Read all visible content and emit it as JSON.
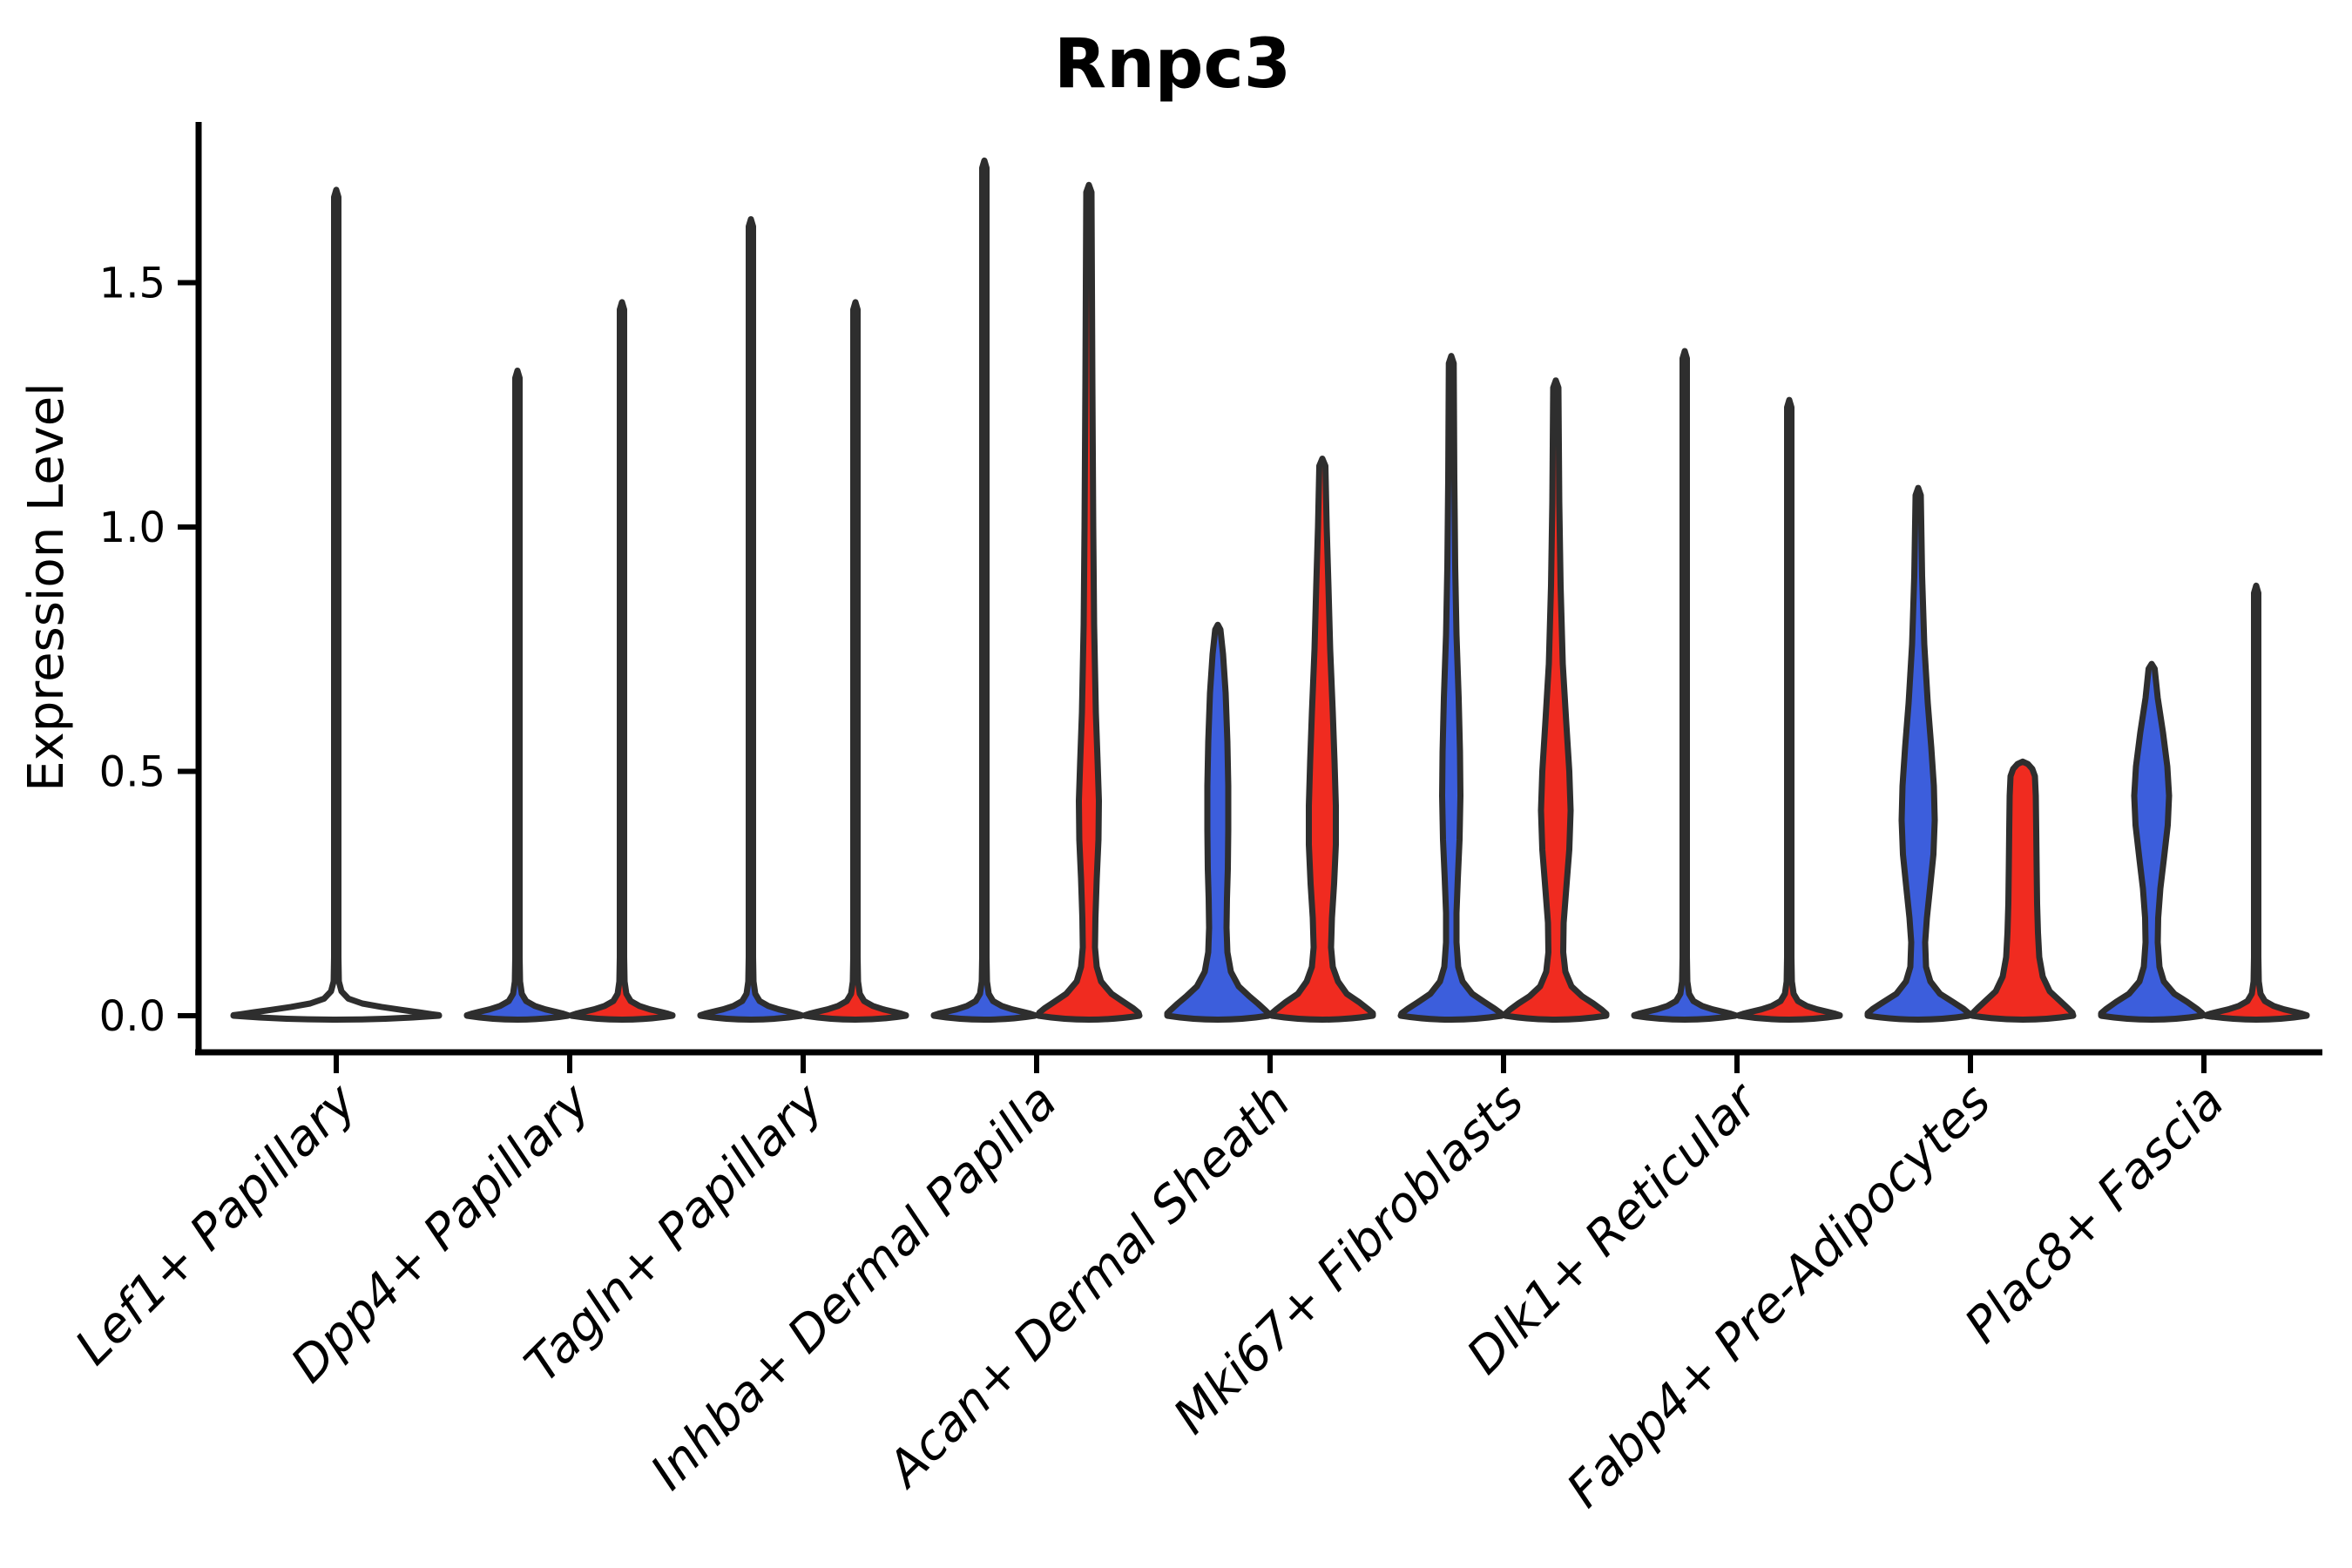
{
  "title": "Rnpc3",
  "ylabel": "Expression Level",
  "colors": {
    "blue": "#3C5EDC",
    "red": "#F02B20",
    "white": "#FFFFFF",
    "outline": "#2E2E2E",
    "axis": "#000000"
  },
  "chart_data": {
    "type": "violin",
    "title": "Rnpc3",
    "xlabel": "",
    "ylabel": "Expression Level",
    "grid": false,
    "legend": "none",
    "yticks": [
      {
        "value": 0.0,
        "label": "0.0"
      },
      {
        "value": 0.5,
        "label": "0.5"
      },
      {
        "value": 1.0,
        "label": "1.0"
      },
      {
        "value": 1.5,
        "label": "1.5"
      }
    ],
    "ylim": [
      -0.07,
      1.83
    ],
    "categories": [
      "Lef1+ Papillary",
      "Dpp4+ Papillary",
      "Tagln+ Papillary",
      "Inhba+ Dermal Papilla",
      "Acan+ Dermal Sheath",
      "Mki67+ Fibroblasts",
      "Dlk1+ Reticular",
      "Fabp4+ Pre-Adipocytes",
      "Plac8+ Fascia"
    ],
    "violins": [
      {
        "name": "lef1-papillary-single",
        "cat": 0,
        "side": "single",
        "fill": "white",
        "max": 1.69,
        "profile": [
          [
            1.69,
            0
          ],
          [
            1.675,
            2.5
          ],
          [
            0.12,
            2.5
          ],
          [
            0.07,
            3
          ],
          [
            0.05,
            6
          ],
          [
            0.035,
            14
          ],
          [
            0.025,
            30
          ],
          [
            0.018,
            52
          ],
          [
            0.012,
            75
          ],
          [
            0.007,
            95
          ],
          [
            0.003,
            110
          ],
          [
            0.001,
            118
          ],
          [
            0,
            118
          ]
        ]
      },
      {
        "name": "dpp4-papillary-left",
        "cat": 1,
        "side": "left",
        "fill": "blue",
        "max": 1.32,
        "profile": [
          [
            1.32,
            0
          ],
          [
            1.305,
            2.5
          ],
          [
            0.12,
            2.5
          ],
          [
            0.07,
            3
          ],
          [
            0.045,
            5
          ],
          [
            0.03,
            10
          ],
          [
            0.02,
            20
          ],
          [
            0.013,
            32
          ],
          [
            0.008,
            44
          ],
          [
            0.004,
            53
          ],
          [
            0.001,
            58
          ],
          [
            0,
            58
          ]
        ]
      },
      {
        "name": "dpp4-papillary-right",
        "cat": 1,
        "side": "right",
        "fill": "red",
        "max": 1.46,
        "profile": [
          [
            1.46,
            0
          ],
          [
            1.445,
            2.5
          ],
          [
            0.12,
            2.5
          ],
          [
            0.07,
            3
          ],
          [
            0.045,
            5
          ],
          [
            0.03,
            10
          ],
          [
            0.02,
            20
          ],
          [
            0.013,
            32
          ],
          [
            0.008,
            44
          ],
          [
            0.004,
            53
          ],
          [
            0.001,
            58
          ],
          [
            0,
            58
          ]
        ]
      },
      {
        "name": "tagln-papillary-left",
        "cat": 2,
        "side": "left",
        "fill": "blue",
        "max": 1.63,
        "profile": [
          [
            1.63,
            0
          ],
          [
            1.615,
            2.5
          ],
          [
            0.12,
            2.5
          ],
          [
            0.07,
            3
          ],
          [
            0.045,
            5
          ],
          [
            0.03,
            10
          ],
          [
            0.02,
            20
          ],
          [
            0.013,
            32
          ],
          [
            0.008,
            44
          ],
          [
            0.004,
            53
          ],
          [
            0.001,
            58
          ],
          [
            0,
            58
          ]
        ]
      },
      {
        "name": "tagln-papillary-right",
        "cat": 2,
        "side": "right",
        "fill": "red",
        "max": 1.46,
        "profile": [
          [
            1.46,
            0
          ],
          [
            1.445,
            2.5
          ],
          [
            0.12,
            2.5
          ],
          [
            0.07,
            3
          ],
          [
            0.045,
            5
          ],
          [
            0.03,
            10
          ],
          [
            0.02,
            20
          ],
          [
            0.013,
            32
          ],
          [
            0.008,
            44
          ],
          [
            0.004,
            53
          ],
          [
            0.001,
            58
          ],
          [
            0,
            58
          ]
        ]
      },
      {
        "name": "inhba-dermal-papilla-left",
        "cat": 3,
        "side": "left",
        "fill": "blue",
        "max": 1.75,
        "profile": [
          [
            1.75,
            0
          ],
          [
            1.735,
            2.5
          ],
          [
            0.12,
            2.5
          ],
          [
            0.07,
            3
          ],
          [
            0.045,
            5
          ],
          [
            0.03,
            10
          ],
          [
            0.02,
            20
          ],
          [
            0.013,
            32
          ],
          [
            0.008,
            44
          ],
          [
            0.004,
            53
          ],
          [
            0.001,
            58
          ],
          [
            0,
            58
          ]
        ]
      },
      {
        "name": "inhba-dermal-papilla-right",
        "cat": 3,
        "side": "right",
        "fill": "red",
        "max": 1.7,
        "profile": [
          [
            1.7,
            0
          ],
          [
            1.685,
            3
          ],
          [
            1.3,
            4
          ],
          [
            1.0,
            5
          ],
          [
            0.8,
            6
          ],
          [
            0.62,
            8
          ],
          [
            0.52,
            10
          ],
          [
            0.44,
            11.5
          ],
          [
            0.36,
            11
          ],
          [
            0.28,
            9
          ],
          [
            0.2,
            7.5
          ],
          [
            0.14,
            7
          ],
          [
            0.1,
            9
          ],
          [
            0.07,
            14
          ],
          [
            0.045,
            26
          ],
          [
            0.028,
            40
          ],
          [
            0.015,
            51
          ],
          [
            0.006,
            57
          ],
          [
            0,
            58
          ]
        ]
      },
      {
        "name": "acan-dermal-sheath-left",
        "cat": 4,
        "side": "left",
        "fill": "blue",
        "max": 0.8,
        "profile": [
          [
            0.8,
            0
          ],
          [
            0.79,
            3
          ],
          [
            0.74,
            6
          ],
          [
            0.66,
            9
          ],
          [
            0.56,
            11
          ],
          [
            0.47,
            12
          ],
          [
            0.38,
            12
          ],
          [
            0.3,
            11.5
          ],
          [
            0.24,
            10.5
          ],
          [
            0.18,
            10
          ],
          [
            0.13,
            11
          ],
          [
            0.09,
            15
          ],
          [
            0.06,
            24
          ],
          [
            0.04,
            36
          ],
          [
            0.025,
            46
          ],
          [
            0.012,
            54
          ],
          [
            0.005,
            58
          ],
          [
            0,
            58
          ]
        ]
      },
      {
        "name": "acan-dermal-sheath-right",
        "cat": 4,
        "side": "right",
        "fill": "red",
        "max": 1.14,
        "profile": [
          [
            1.14,
            0
          ],
          [
            1.125,
            3.5
          ],
          [
            1.0,
            5
          ],
          [
            0.88,
            7
          ],
          [
            0.75,
            9
          ],
          [
            0.62,
            12
          ],
          [
            0.52,
            14
          ],
          [
            0.43,
            15.5
          ],
          [
            0.35,
            15.5
          ],
          [
            0.27,
            13.5
          ],
          [
            0.2,
            11
          ],
          [
            0.14,
            10
          ],
          [
            0.1,
            12
          ],
          [
            0.07,
            18
          ],
          [
            0.045,
            28
          ],
          [
            0.028,
            42
          ],
          [
            0.014,
            52
          ],
          [
            0.005,
            58
          ],
          [
            0,
            58
          ]
        ]
      },
      {
        "name": "mki67-fibroblasts-left",
        "cat": 5,
        "side": "left",
        "fill": "blue",
        "max": 1.35,
        "profile": [
          [
            1.35,
            0
          ],
          [
            1.335,
            2.8
          ],
          [
            1.1,
            3.5
          ],
          [
            0.92,
            4.5
          ],
          [
            0.78,
            6
          ],
          [
            0.65,
            8.5
          ],
          [
            0.54,
            10
          ],
          [
            0.45,
            10.5
          ],
          [
            0.36,
            9.5
          ],
          [
            0.28,
            7.5
          ],
          [
            0.21,
            6
          ],
          [
            0.15,
            6
          ],
          [
            0.1,
            8
          ],
          [
            0.07,
            13
          ],
          [
            0.045,
            24
          ],
          [
            0.028,
            38
          ],
          [
            0.014,
            50
          ],
          [
            0.005,
            57
          ],
          [
            0,
            58
          ]
        ]
      },
      {
        "name": "mki67-fibroblasts-right",
        "cat": 5,
        "side": "right",
        "fill": "red",
        "max": 1.3,
        "profile": [
          [
            1.3,
            0
          ],
          [
            1.285,
            3
          ],
          [
            1.05,
            4
          ],
          [
            0.88,
            5.5
          ],
          [
            0.72,
            8
          ],
          [
            0.6,
            12
          ],
          [
            0.5,
            15.5
          ],
          [
            0.42,
            17
          ],
          [
            0.34,
            15.5
          ],
          [
            0.26,
            12
          ],
          [
            0.19,
            9
          ],
          [
            0.13,
            8.5
          ],
          [
            0.09,
            11
          ],
          [
            0.06,
            18
          ],
          [
            0.04,
            30
          ],
          [
            0.025,
            43
          ],
          [
            0.012,
            53
          ],
          [
            0.004,
            58
          ],
          [
            0,
            58
          ]
        ]
      },
      {
        "name": "dlk1-reticular-left",
        "cat": 6,
        "side": "left",
        "fill": "blue",
        "max": 1.36,
        "profile": [
          [
            1.36,
            0
          ],
          [
            1.345,
            2.5
          ],
          [
            0.12,
            2.5
          ],
          [
            0.07,
            3
          ],
          [
            0.045,
            5
          ],
          [
            0.03,
            10
          ],
          [
            0.02,
            20
          ],
          [
            0.013,
            32
          ],
          [
            0.008,
            44
          ],
          [
            0.004,
            53
          ],
          [
            0.001,
            58
          ],
          [
            0,
            58
          ]
        ]
      },
      {
        "name": "dlk1-reticular-right",
        "cat": 6,
        "side": "right",
        "fill": "red",
        "max": 1.26,
        "profile": [
          [
            1.26,
            0
          ],
          [
            1.245,
            2.5
          ],
          [
            0.12,
            2.5
          ],
          [
            0.07,
            3
          ],
          [
            0.045,
            5
          ],
          [
            0.03,
            10
          ],
          [
            0.02,
            20
          ],
          [
            0.013,
            32
          ],
          [
            0.008,
            44
          ],
          [
            0.004,
            53
          ],
          [
            0.001,
            58
          ],
          [
            0,
            58
          ]
        ]
      },
      {
        "name": "fabp4-pre-adipocytes-left",
        "cat": 7,
        "side": "left",
        "fill": "blue",
        "max": 1.08,
        "profile": [
          [
            1.08,
            0
          ],
          [
            1.065,
            3
          ],
          [
            0.9,
            4.5
          ],
          [
            0.76,
            7
          ],
          [
            0.64,
            11
          ],
          [
            0.55,
            15
          ],
          [
            0.47,
            18
          ],
          [
            0.4,
            19
          ],
          [
            0.33,
            17.5
          ],
          [
            0.26,
            13.5
          ],
          [
            0.2,
            10
          ],
          [
            0.15,
            8
          ],
          [
            0.1,
            9
          ],
          [
            0.07,
            14
          ],
          [
            0.045,
            25
          ],
          [
            0.028,
            40
          ],
          [
            0.014,
            52
          ],
          [
            0.005,
            58
          ],
          [
            0,
            58
          ]
        ]
      },
      {
        "name": "fabp4-pre-adipocytes-right",
        "cat": 7,
        "side": "right",
        "fill": "red",
        "max": 0.52,
        "profile": [
          [
            0.52,
            0
          ],
          [
            0.515,
            6
          ],
          [
            0.505,
            11
          ],
          [
            0.49,
            14
          ],
          [
            0.45,
            15
          ],
          [
            0.38,
            15.5
          ],
          [
            0.3,
            16
          ],
          [
            0.23,
            16.5
          ],
          [
            0.17,
            17.5
          ],
          [
            0.12,
            19
          ],
          [
            0.08,
            23
          ],
          [
            0.05,
            31
          ],
          [
            0.03,
            43
          ],
          [
            0.015,
            52
          ],
          [
            0.006,
            57
          ],
          [
            0,
            58
          ]
        ]
      },
      {
        "name": "plac8-fascia-left",
        "cat": 8,
        "side": "left",
        "fill": "blue",
        "max": 0.72,
        "profile": [
          [
            0.72,
            0
          ],
          [
            0.71,
            3.5
          ],
          [
            0.65,
            7
          ],
          [
            0.58,
            13
          ],
          [
            0.51,
            18
          ],
          [
            0.45,
            20
          ],
          [
            0.39,
            18.5
          ],
          [
            0.32,
            14
          ],
          [
            0.26,
            10
          ],
          [
            0.2,
            7.5
          ],
          [
            0.15,
            7
          ],
          [
            0.1,
            9
          ],
          [
            0.07,
            14
          ],
          [
            0.045,
            26
          ],
          [
            0.028,
            41
          ],
          [
            0.014,
            52
          ],
          [
            0.005,
            58
          ],
          [
            0,
            58
          ]
        ]
      },
      {
        "name": "plac8-fascia-right",
        "cat": 8,
        "side": "right",
        "fill": "red",
        "max": 0.88,
        "profile": [
          [
            0.88,
            0
          ],
          [
            0.865,
            2.5
          ],
          [
            0.12,
            2.5
          ],
          [
            0.07,
            3
          ],
          [
            0.045,
            5
          ],
          [
            0.03,
            10
          ],
          [
            0.02,
            20
          ],
          [
            0.013,
            32
          ],
          [
            0.008,
            44
          ],
          [
            0.004,
            53
          ],
          [
            0.001,
            58
          ],
          [
            0,
            58
          ]
        ]
      }
    ]
  }
}
